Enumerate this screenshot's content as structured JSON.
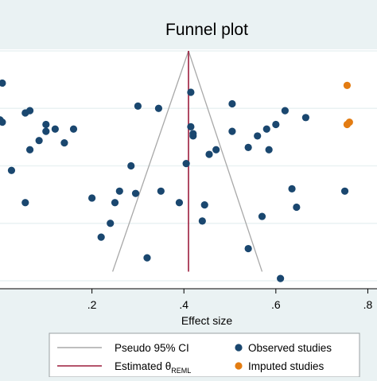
{
  "chart_data": {
    "type": "scatter",
    "title": "Funnel plot",
    "xlabel": "Effect size",
    "ylabel": "",
    "xlim": [
      0.0,
      0.82
    ],
    "xticks": [
      0.2,
      0.4,
      0.6,
      0.8
    ],
    "xtick_labels": [
      ".2",
      ".4",
      ".6",
      ".8"
    ],
    "ylim": [
      0.0,
      1.0
    ],
    "y_axis": "standard error, increasing downward; no tick labels visible",
    "grid": "horizontal",
    "legend_position": "bottom",
    "estimate": 0.41,
    "estimate_label": "Estimated θ",
    "estimate_label_sub": "REML",
    "ci_label": "Pseudo 95% CI",
    "ci_apex": [
      0.41,
      0.0
    ],
    "ci_base_left": [
      0.245,
      0.96
    ],
    "ci_base_right": [
      0.57,
      0.96
    ],
    "colors": {
      "observed": "#1a476f",
      "imputed": "#e37c12",
      "estimate_line": "#9c1c3c",
      "ci_lines": "#a8a8a8",
      "background": "#eaf2f3",
      "plot_background": "#ffffff",
      "title_band": "#eaf2f3"
    },
    "series": [
      {
        "name": "Observed studies",
        "points": [
          {
            "x": 0.005,
            "y": 0.14
          },
          {
            "x": 0.0,
            "y": 0.3
          },
          {
            "x": 0.005,
            "y": 0.31
          },
          {
            "x": 0.055,
            "y": 0.27
          },
          {
            "x": 0.065,
            "y": 0.26
          },
          {
            "x": 0.1,
            "y": 0.32
          },
          {
            "x": 0.12,
            "y": 0.34
          },
          {
            "x": 0.085,
            "y": 0.39
          },
          {
            "x": 0.1,
            "y": 0.35
          },
          {
            "x": 0.16,
            "y": 0.34
          },
          {
            "x": 0.065,
            "y": 0.43
          },
          {
            "x": 0.025,
            "y": 0.52
          },
          {
            "x": 0.055,
            "y": 0.66
          },
          {
            "x": 0.14,
            "y": 0.4
          },
          {
            "x": 0.2,
            "y": 0.64
          },
          {
            "x": 0.22,
            "y": 0.81
          },
          {
            "x": 0.25,
            "y": 0.66
          },
          {
            "x": 0.24,
            "y": 0.75
          },
          {
            "x": 0.26,
            "y": 0.61
          },
          {
            "x": 0.285,
            "y": 0.5
          },
          {
            "x": 0.3,
            "y": 0.24
          },
          {
            "x": 0.345,
            "y": 0.25
          },
          {
            "x": 0.32,
            "y": 0.9
          },
          {
            "x": 0.35,
            "y": 0.61
          },
          {
            "x": 0.39,
            "y": 0.66
          },
          {
            "x": 0.405,
            "y": 0.49
          },
          {
            "x": 0.415,
            "y": 0.18
          },
          {
            "x": 0.415,
            "y": 0.33
          },
          {
            "x": 0.42,
            "y": 0.36
          },
          {
            "x": 0.44,
            "y": 0.74
          },
          {
            "x": 0.445,
            "y": 0.67
          },
          {
            "x": 0.455,
            "y": 0.45
          },
          {
            "x": 0.47,
            "y": 0.43
          },
          {
            "x": 0.505,
            "y": 0.23
          },
          {
            "x": 0.505,
            "y": 0.35
          },
          {
            "x": 0.54,
            "y": 0.42
          },
          {
            "x": 0.56,
            "y": 0.37
          },
          {
            "x": 0.58,
            "y": 0.34
          },
          {
            "x": 0.585,
            "y": 0.43
          },
          {
            "x": 0.6,
            "y": 0.32
          },
          {
            "x": 0.57,
            "y": 0.72
          },
          {
            "x": 0.54,
            "y": 0.86
          },
          {
            "x": 0.61,
            "y": 0.99
          },
          {
            "x": 0.62,
            "y": 0.26
          },
          {
            "x": 0.635,
            "y": 0.6
          },
          {
            "x": 0.645,
            "y": 0.68
          },
          {
            "x": 0.665,
            "y": 0.29
          },
          {
            "x": 0.75,
            "y": 0.61
          },
          {
            "x": 0.295,
            "y": 0.62
          },
          {
            "x": 0.42,
            "y": 0.37
          }
        ]
      },
      {
        "name": "Imputed studies",
        "points": [
          {
            "x": 0.755,
            "y": 0.15
          },
          {
            "x": 0.755,
            "y": 0.32
          },
          {
            "x": 0.76,
            "y": 0.31
          }
        ]
      }
    ]
  }
}
